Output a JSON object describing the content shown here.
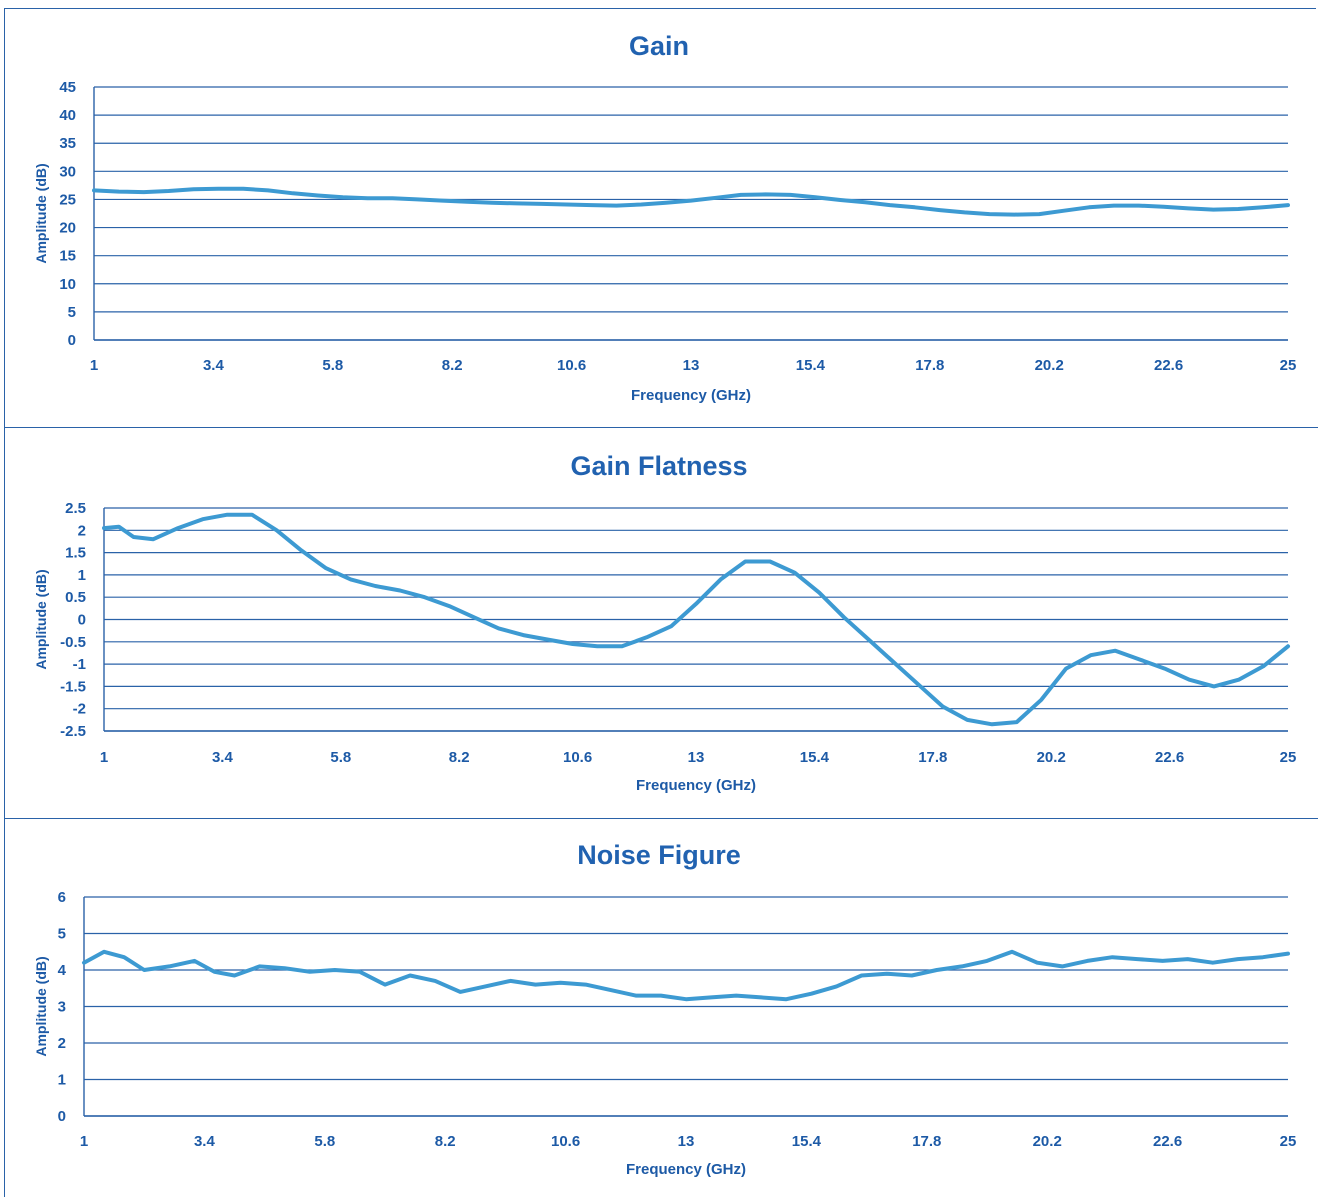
{
  "chart_data": [
    {
      "type": "line",
      "title": "Gain",
      "xlabel": "Frequency (GHz)",
      "ylabel": "Amplitude (dB)",
      "xlim": [
        1,
        25
      ],
      "ylim": [
        0,
        45
      ],
      "xticks": [
        "1",
        "3.4",
        "5.8",
        "8.2",
        "10.6",
        "13",
        "15.4",
        "17.8",
        "20.2",
        "22.6",
        "25"
      ],
      "yticks": [
        "0",
        "5",
        "10",
        "15",
        "20",
        "25",
        "30",
        "35",
        "40",
        "45"
      ],
      "grid": true,
      "series": [
        {
          "color": "#3d9ad2",
          "x": [
            1,
            1.5,
            2,
            2.5,
            3,
            3.5,
            4,
            4.5,
            5,
            5.5,
            6,
            6.5,
            7,
            7.5,
            8,
            8.5,
            9,
            9.5,
            10,
            10.5,
            11,
            11.5,
            12,
            12.5,
            13,
            13.5,
            14,
            14.5,
            15,
            15.5,
            16,
            16.5,
            17,
            17.5,
            18,
            18.5,
            19,
            19.5,
            20,
            20.5,
            21,
            21.5,
            22,
            22.5,
            23,
            23.5,
            24,
            24.5,
            25
          ],
          "y": [
            26.6,
            26.4,
            26.3,
            26.5,
            26.8,
            26.9,
            26.9,
            26.6,
            26.1,
            25.7,
            25.4,
            25.2,
            25.2,
            25.0,
            24.8,
            24.6,
            24.4,
            24.3,
            24.2,
            24.1,
            24.0,
            23.9,
            24.1,
            24.4,
            24.8,
            25.3,
            25.8,
            25.9,
            25.8,
            25.4,
            24.9,
            24.5,
            24.0,
            23.6,
            23.1,
            22.7,
            22.4,
            22.3,
            22.4,
            23.0,
            23.6,
            23.9,
            23.9,
            23.7,
            23.4,
            23.2,
            23.3,
            23.6,
            24.0
          ]
        }
      ]
    },
    {
      "type": "line",
      "title": "Gain Flatness",
      "xlabel": "Frequency (GHz)",
      "ylabel": "Amplitude (dB)",
      "xlim": [
        1,
        25
      ],
      "ylim": [
        -2.5,
        2.5
      ],
      "xticks": [
        "1",
        "3.4",
        "5.8",
        "8.2",
        "10.6",
        "13",
        "15.4",
        "17.8",
        "20.2",
        "22.6",
        "25"
      ],
      "yticks": [
        "-2.5",
        "-2",
        "-1.5",
        "-1",
        "-0.5",
        "0",
        "0.5",
        "1",
        "1.5",
        "2",
        "2.5"
      ],
      "grid": true,
      "series": [
        {
          "color": "#3d9ad2",
          "x": [
            1,
            1.3,
            1.6,
            2,
            2.5,
            3,
            3.5,
            4,
            4.5,
            5,
            5.5,
            6,
            6.5,
            7,
            7.5,
            8,
            8.5,
            9,
            9.5,
            10,
            10.5,
            11,
            11.5,
            12,
            12.5,
            13,
            13.5,
            14,
            14.5,
            15,
            15.5,
            16,
            16.5,
            17,
            17.5,
            18,
            18.5,
            19,
            19.5,
            20,
            20.5,
            21,
            21.5,
            22,
            22.5,
            23,
            23.5,
            24,
            24.5,
            25
          ],
          "y": [
            2.05,
            2.08,
            1.85,
            1.8,
            2.05,
            2.25,
            2.35,
            2.35,
            2.0,
            1.55,
            1.15,
            0.9,
            0.75,
            0.65,
            0.5,
            0.3,
            0.05,
            -0.2,
            -0.35,
            -0.45,
            -0.55,
            -0.6,
            -0.6,
            -0.4,
            -0.15,
            0.35,
            0.9,
            1.3,
            1.3,
            1.05,
            0.6,
            0.05,
            -0.45,
            -0.95,
            -1.45,
            -1.95,
            -2.25,
            -2.35,
            -2.3,
            -1.8,
            -1.1,
            -0.8,
            -0.7,
            -0.9,
            -1.1,
            -1.35,
            -1.5,
            -1.35,
            -1.05,
            -0.6
          ]
        }
      ]
    },
    {
      "type": "line",
      "title": "Noise Figure",
      "xlabel": "Frequency (GHz)",
      "ylabel": "Amplitude (dB)",
      "xlim": [
        1,
        25
      ],
      "ylim": [
        0,
        6
      ],
      "xticks": [
        "1",
        "3.4",
        "5.8",
        "8.2",
        "10.6",
        "13",
        "15.4",
        "17.8",
        "20.2",
        "22.6",
        "25"
      ],
      "yticks": [
        "0",
        "1",
        "2",
        "3",
        "4",
        "5",
        "6"
      ],
      "grid": true,
      "series": [
        {
          "color": "#3d9ad2",
          "x": [
            1,
            1.4,
            1.8,
            2.2,
            2.7,
            3.2,
            3.6,
            4,
            4.5,
            5,
            5.5,
            6,
            6.5,
            7,
            7.5,
            8,
            8.5,
            9,
            9.5,
            10,
            10.5,
            11,
            11.5,
            12,
            12.5,
            13,
            13.5,
            14,
            14.5,
            15,
            15.5,
            16,
            16.5,
            17,
            17.5,
            18,
            18.5,
            19,
            19.5,
            20,
            20.5,
            21,
            21.5,
            22,
            22.5,
            23,
            23.5,
            24,
            24.5,
            25
          ],
          "y": [
            4.2,
            4.5,
            4.35,
            4.0,
            4.1,
            4.25,
            3.95,
            3.85,
            4.1,
            4.05,
            3.95,
            4.0,
            3.95,
            3.6,
            3.85,
            3.7,
            3.4,
            3.55,
            3.7,
            3.6,
            3.65,
            3.6,
            3.45,
            3.3,
            3.3,
            3.2,
            3.25,
            3.3,
            3.25,
            3.2,
            3.35,
            3.55,
            3.85,
            3.9,
            3.85,
            4.0,
            4.1,
            4.25,
            4.5,
            4.2,
            4.1,
            4.25,
            4.35,
            4.3,
            4.25,
            4.3,
            4.2,
            4.3,
            4.35,
            4.45
          ]
        }
      ]
    }
  ]
}
